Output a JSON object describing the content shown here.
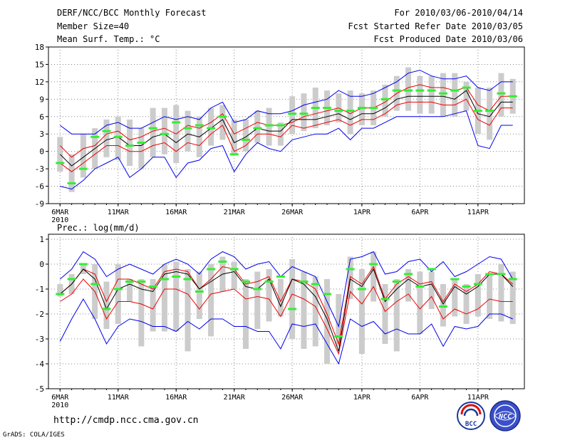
{
  "header": {
    "title": "DERF/NCC/BCC Monthly Forecast",
    "member_size": "Member Size=40",
    "variable": "Mean Surf. Temp.: °C",
    "period": "For 2010/03/06-2010/04/14",
    "started": "Fcst Started Refer Date 2010/03/05",
    "produced": "Fcst Produced Date 2010/03/06"
  },
  "footer": {
    "url": "http://cmdp.ncc.cma.gov.cn",
    "credit": "GrADS: COLA/IGES",
    "logo_bcc_text": "BCC",
    "logo_ncc_text": "NCC"
  },
  "colors": {
    "envelope": "#0000ee",
    "spread": "#ee0000",
    "median": "#000000",
    "box": "#cccccc",
    "obs": "#33ee33",
    "grid": "#888888"
  },
  "chart_data": [
    {
      "type": "ensemble-range",
      "title": "Mean Surf. Temp.: °C",
      "xlabel": "",
      "ylabel": "°C",
      "ylim": [
        -9,
        18
      ],
      "yticks": [
        -9,
        -6,
        -3,
        0,
        3,
        6,
        9,
        12,
        15,
        18
      ],
      "xticks": [
        {
          "day": 1,
          "label": "6MAR",
          "sub": "2010"
        },
        {
          "day": 6,
          "label": "11MAR"
        },
        {
          "day": 11,
          "label": "16MAR"
        },
        {
          "day": 16,
          "label": "21MAR"
        },
        {
          "day": 21,
          "label": "26MAR"
        },
        {
          "day": 27,
          "label": "1APR"
        },
        {
          "day": 32,
          "label": "6APR"
        },
        {
          "day": 37,
          "label": "11APR"
        }
      ],
      "x": [
        1,
        2,
        3,
        4,
        5,
        6,
        7,
        8,
        9,
        10,
        11,
        12,
        13,
        14,
        15,
        16,
        17,
        18,
        19,
        20,
        21,
        22,
        23,
        24,
        25,
        26,
        27,
        28,
        29,
        30,
        31,
        32,
        33,
        34,
        35,
        36,
        37,
        38,
        39,
        40
      ],
      "max": [
        4.5,
        3,
        3,
        3,
        4.5,
        5,
        4,
        4,
        5,
        6,
        5.5,
        6,
        5.5,
        7.5,
        8.5,
        5,
        5.5,
        7,
        6.5,
        6.5,
        7,
        8,
        8.5,
        9,
        10.5,
        9.5,
        9.5,
        10,
        11,
        12,
        13.5,
        14,
        13,
        12.5,
        12.5,
        13,
        11,
        10.5,
        12,
        12
      ],
      "upper": [
        1,
        -1,
        0.5,
        1,
        3,
        3.5,
        2,
        2.5,
        3.5,
        4,
        3,
        4.5,
        4,
        5,
        6.5,
        3,
        4,
        5,
        4.5,
        4.5,
        5,
        6,
        6.5,
        7,
        7.5,
        6.5,
        7.5,
        7.5,
        8.5,
        10,
        11,
        11.5,
        11,
        11,
        10.5,
        11,
        8,
        7,
        9.5,
        9.5
      ],
      "median": [
        -0.5,
        -2.5,
        -1,
        0.5,
        2,
        2.5,
        1,
        1,
        2.5,
        3,
        1.5,
        3,
        2.5,
        4,
        5.5,
        1.5,
        2.5,
        4,
        3.5,
        3.5,
        5.5,
        5.5,
        5.5,
        6,
        6.5,
        5.5,
        6.5,
        6.5,
        7.5,
        9,
        9.5,
        9.5,
        9.5,
        9.5,
        9,
        10.5,
        6.5,
        6,
        8.5,
        8.5
      ],
      "lower": [
        -2,
        -3.5,
        -2,
        -0.5,
        1,
        1,
        0,
        0,
        1,
        1.5,
        0,
        1.5,
        1,
        3,
        4.5,
        0,
        1,
        3,
        3,
        2.5,
        4.5,
        4,
        4.5,
        5,
        5.5,
        4.5,
        5.5,
        5.5,
        6.5,
        8,
        8.5,
        8.5,
        8.5,
        8,
        8,
        9,
        5.5,
        4.5,
        7.5,
        7.5
      ],
      "min": [
        -6,
        -6.5,
        -5,
        -3,
        -2,
        -1,
        -4.5,
        -3,
        -1,
        -1,
        -4.5,
        -2,
        -1.5,
        0.5,
        1,
        -3.5,
        -0.5,
        1.5,
        0.5,
        0,
        2,
        2.5,
        3,
        3,
        4,
        2,
        4,
        4,
        5,
        6,
        6,
        6,
        6,
        6,
        6.5,
        7,
        1,
        0.5,
        4.5,
        4.5
      ],
      "box_top": [
        2.5,
        -0.5,
        3,
        4,
        5.5,
        6,
        5.5,
        4,
        7.5,
        7.5,
        8,
        7,
        6,
        7.5,
        8,
        5.5,
        5.5,
        7,
        7.5,
        5,
        9.5,
        10,
        11,
        10.5,
        10,
        10.5,
        10,
        10.5,
        11.5,
        13,
        14.5,
        13,
        13,
        13.5,
        13.5,
        12,
        11,
        11,
        13.5,
        12.5
      ],
      "box_bottom": [
        -3.5,
        -7,
        -4.5,
        -3,
        -1,
        -1.5,
        -2.5,
        -3,
        -1,
        -0.5,
        -2,
        0,
        -1,
        1,
        2,
        -0.5,
        0,
        1.5,
        1,
        1,
        3,
        3.5,
        4,
        4.5,
        5,
        3,
        4.5,
        4.5,
        6,
        7,
        7,
        6.5,
        6.5,
        6,
        6,
        7,
        3,
        2,
        6,
        6.5
      ],
      "obs": [
        -2,
        -5.5,
        -3,
        2.5,
        3.5,
        2.5,
        1,
        1.5,
        4,
        3,
        5,
        4,
        4.5,
        4,
        6,
        -0.5,
        2,
        4,
        4.5,
        4.5,
        6.5,
        6.5,
        7.5,
        7.5,
        7,
        7,
        7.5,
        7.5,
        9,
        10.5,
        10.5,
        10.5,
        10.5,
        10,
        10.5,
        11,
        7,
        7,
        10,
        9.5
      ]
    },
    {
      "type": "ensemble-range",
      "title": "Prec.: log(mm/d)",
      "xlabel": "",
      "ylabel": "log(mm/d)",
      "ylim": [
        -5,
        1.2
      ],
      "yticks": [
        -5,
        -4,
        -3,
        -2,
        -1,
        0,
        1
      ],
      "xticks": [
        {
          "day": 1,
          "label": "6MAR",
          "sub": "2010"
        },
        {
          "day": 6,
          "label": "11MAR"
        },
        {
          "day": 11,
          "label": "16MAR"
        },
        {
          "day": 16,
          "label": "21MAR"
        },
        {
          "day": 21,
          "label": "26MAR"
        },
        {
          "day": 27,
          "label": "1APR"
        },
        {
          "day": 32,
          "label": "6APR"
        },
        {
          "day": 37,
          "label": "11APR"
        }
      ],
      "x": [
        1,
        2,
        3,
        4,
        5,
        6,
        7,
        8,
        9,
        10,
        11,
        12,
        13,
        14,
        15,
        16,
        17,
        18,
        19,
        20,
        21,
        22,
        23,
        24,
        25,
        26,
        27,
        28,
        29,
        30,
        31,
        32,
        33,
        34,
        35,
        36,
        37,
        38,
        39,
        40
      ],
      "max": [
        -0.6,
        -0.2,
        0.5,
        0.2,
        -0.5,
        -0.2,
        0,
        -0.2,
        -0.4,
        0,
        0.2,
        0,
        -0.4,
        0.2,
        0.5,
        0.3,
        -0.2,
        0,
        0.1,
        -0.5,
        -0.1,
        -0.3,
        -0.5,
        -1.5,
        -2.5,
        0.2,
        0.3,
        0.5,
        -0.4,
        -0.3,
        0.1,
        0.2,
        -0.3,
        0.1,
        -0.5,
        -0.3,
        0,
        0.3,
        0.2,
        -0.6
      ],
      "upper": [
        -1.2,
        -0.8,
        -0.2,
        -0.4,
        -1.5,
        -0.6,
        -0.6,
        -0.8,
        -1,
        -0.3,
        -0.2,
        -0.3,
        -1,
        -0.6,
        -0.1,
        -0.2,
        -0.8,
        -0.7,
        -0.5,
        -1.5,
        -0.6,
        -0.7,
        -1.0,
        -2.0,
        -3.2,
        -0.5,
        -0.8,
        -0.1,
        -1.4,
        -0.8,
        -0.5,
        -0.8,
        -0.7,
        -1.5,
        -0.8,
        -1.1,
        -0.8,
        -0.3,
        -0.4,
        -0.8
      ],
      "median": [
        -1.2,
        -0.8,
        -0.2,
        -0.6,
        -1.8,
        -1,
        -0.8,
        -1,
        -1.1,
        -0.4,
        -0.3,
        -0.4,
        -1,
        -0.7,
        -0.4,
        -0.3,
        -0.9,
        -1,
        -0.6,
        -1.7,
        -0.6,
        -0.8,
        -1.3,
        -2.2,
        -3.5,
        -0.6,
        -0.9,
        -0.2,
        -1.5,
        -1,
        -0.6,
        -0.9,
        -0.8,
        -1.6,
        -0.9,
        -1.2,
        -0.9,
        -0.4,
        -0.4,
        -0.9
      ],
      "lower": [
        -1.5,
        -1.2,
        -0.6,
        -1.1,
        -2.2,
        -1.5,
        -1.5,
        -1.6,
        -1.8,
        -1,
        -1,
        -1.2,
        -1.8,
        -1.2,
        -1.1,
        -1,
        -1.4,
        -1.3,
        -1.4,
        -2.1,
        -1.2,
        -1.4,
        -1.7,
        -2.6,
        -3.6,
        -1.1,
        -1.6,
        -0.9,
        -1.9,
        -1.5,
        -1.2,
        -1.8,
        -1.3,
        -2.2,
        -1.8,
        -2.0,
        -1.8,
        -1.4,
        -1.5,
        -1.5
      ],
      "min": [
        -3.1,
        -2.2,
        -1.4,
        -2.2,
        -3.2,
        -2.5,
        -2.2,
        -2.3,
        -2.5,
        -2.5,
        -2.7,
        -2.3,
        -2.6,
        -2.2,
        -2.2,
        -2.5,
        -2.5,
        -2.7,
        -2.7,
        -3.4,
        -2.4,
        -2.5,
        -2.4,
        -3.2,
        -4.0,
        -2.2,
        -2.5,
        -2.3,
        -2.8,
        -2.6,
        -2.8,
        -2.8,
        -2.4,
        -3.3,
        -2.5,
        -2.6,
        -2.5,
        -2.0,
        -2.0,
        -2.2
      ],
      "box_top": [
        -0.8,
        -0.4,
        0,
        0,
        -0.7,
        0,
        -0.6,
        -0.6,
        -0.6,
        0,
        0.1,
        -0.2,
        -0.3,
        0,
        0.3,
        0.1,
        -0.6,
        -0.3,
        -0.2,
        -0.6,
        0.2,
        -0.3,
        -0.5,
        -0.6,
        -1.2,
        0.3,
        -0.2,
        0.5,
        -0.8,
        -0.6,
        -0.2,
        -0.3,
        -0.3,
        -0.8,
        -0.6,
        -0.8,
        -0.4,
        -0.4,
        0,
        -0.3
      ],
      "box_bottom": [
        -1.3,
        -1.2,
        -0.4,
        -2.2,
        -2.6,
        -2.4,
        -1.5,
        -3.3,
        -2.7,
        -2.7,
        -2.7,
        -3.5,
        -2.2,
        -2.9,
        -1.1,
        -1,
        -3.4,
        -2.6,
        -2.3,
        -2.1,
        -3,
        -3.4,
        -3.3,
        -4,
        -3.3,
        -1.4,
        -3.6,
        -1.5,
        -3.2,
        -3.5,
        -1.5,
        -2.8,
        -1.8,
        -2.5,
        -2.1,
        -2.4,
        -2.1,
        -2.2,
        -2.3,
        -2.4
      ],
      "obs": [
        -1.2,
        -0.6,
        0,
        -0.8,
        -1.8,
        -1,
        -0.7,
        -0.7,
        -0.9,
        -0.6,
        -0.5,
        -0.6,
        -1.1,
        -0.2,
        0.1,
        -0.2,
        -0.7,
        -1.0,
        -0.7,
        -0.5,
        -1.8,
        -0.7,
        -0.8,
        -1.2,
        -2.9,
        -0.2,
        -1.0,
        0,
        -1.4,
        -0.7,
        -0.4,
        -0.9,
        -0.2,
        -1.7,
        -0.6,
        -0.9,
        -0.8,
        -0.4,
        -0.4,
        -0.6
      ]
    }
  ]
}
